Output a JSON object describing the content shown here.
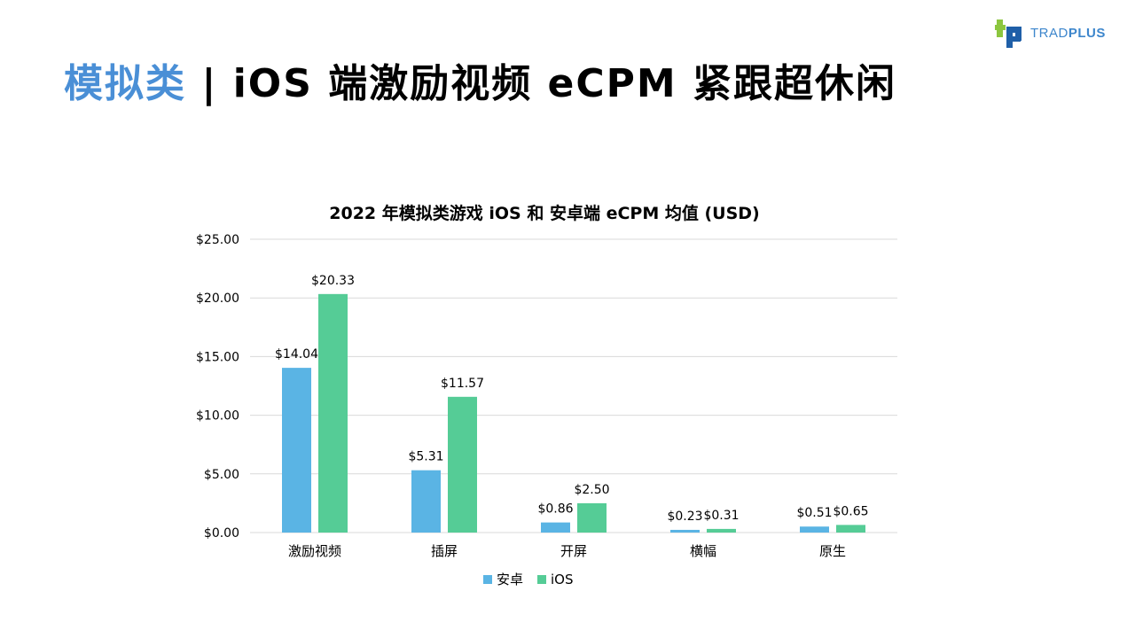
{
  "header": {
    "title_accent": "模拟类",
    "title_rest": " | iOS 端激励视频 eCPM 紧跟超休闲"
  },
  "logo": {
    "text_bold": "TRAD",
    "text_plus": "PLUS",
    "icon": "tradplus-logo-icon"
  },
  "colors": {
    "accent": "#4a8fd6",
    "android": "#5ab4e4",
    "ios": "#55cc96",
    "grid": "#d9d9d9"
  },
  "chart_data": {
    "type": "bar",
    "title": "2022 年模拟类游戏 iOS 和 安卓端 eCPM 均值 (USD)",
    "categories": [
      "激励视频",
      "插屏",
      "开屏",
      "横幅",
      "原生"
    ],
    "series": [
      {
        "name": "安卓",
        "values": [
          14.04,
          5.31,
          0.86,
          0.23,
          0.51
        ],
        "labels": [
          "$14.04",
          "$5.31",
          "$0.86",
          "$0.23",
          "$0.51"
        ]
      },
      {
        "name": "iOS",
        "values": [
          20.33,
          11.57,
          2.5,
          0.31,
          0.65
        ],
        "labels": [
          "$20.33",
          "$11.57",
          "$2.50",
          "$0.31",
          "$0.65"
        ]
      }
    ],
    "ylim": [
      0,
      25
    ],
    "yticks": [
      0,
      5,
      10,
      15,
      20,
      25
    ],
    "ytick_labels": [
      "$0.00",
      "$5.00",
      "$10.00",
      "$15.00",
      "$20.00",
      "$25.00"
    ],
    "grid": true,
    "legend": "bottom"
  }
}
